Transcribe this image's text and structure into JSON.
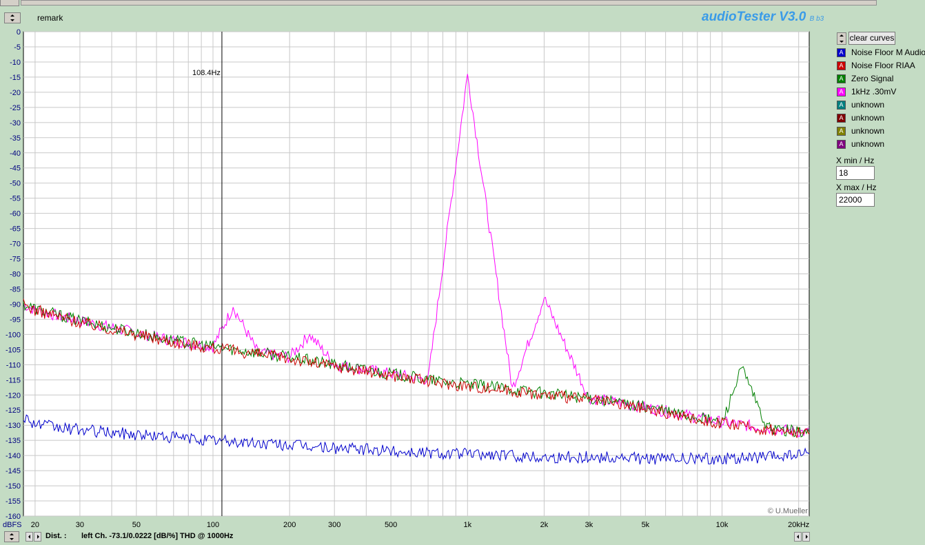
{
  "app": {
    "remark_label": "remark",
    "brand_title": "audioTester V3.0",
    "brand_sub": "B b3",
    "copyright": "© U.Mueller"
  },
  "sidebar": {
    "clear_label": "clear curves",
    "legend": [
      {
        "label": "Noise Floor M Audio",
        "color": "#0000cc"
      },
      {
        "label": "Noise Floor RIAA",
        "color": "#cc0000"
      },
      {
        "label": "Zero Signal",
        "color": "#008000"
      },
      {
        "label": "1kHz .30mV",
        "color": "#ff00ff"
      },
      {
        "label": "unknown",
        "color": "#008080"
      },
      {
        "label": "unknown",
        "color": "#800000"
      },
      {
        "label": "unknown",
        "color": "#808000"
      },
      {
        "label": "unknown",
        "color": "#800080"
      }
    ],
    "legend_glyph": "A",
    "xmin_label": "X min / Hz",
    "xmin_value": "18",
    "xmax_label": "X max / Hz",
    "xmax_value": "22000"
  },
  "status": {
    "dist_label": "Dist. :",
    "text": "left Ch.  -73.1/0.0222 [dB/%] THD @ 1000Hz"
  },
  "chart_data": {
    "type": "line",
    "x_scale": "log",
    "xlim": [
      18,
      22000
    ],
    "ylim": [
      -160,
      0
    ],
    "ylabel": "dBFS",
    "grid": true,
    "y_ticks": [
      0,
      -5,
      -10,
      -15,
      -20,
      -25,
      -30,
      -35,
      -40,
      -45,
      -50,
      -55,
      -60,
      -65,
      -70,
      -75,
      -80,
      -85,
      -90,
      -95,
      -100,
      -105,
      -110,
      -115,
      -120,
      -125,
      -130,
      -135,
      -140,
      -145,
      -150,
      -155,
      -160
    ],
    "x_ticks": [
      {
        "value": 20,
        "label": "20"
      },
      {
        "value": 30,
        "label": "30"
      },
      {
        "value": 50,
        "label": "50"
      },
      {
        "value": 100,
        "label": "100"
      },
      {
        "value": 200,
        "label": "200"
      },
      {
        "value": 300,
        "label": "300"
      },
      {
        "value": 500,
        "label": "500"
      },
      {
        "value": 1000,
        "label": "1k"
      },
      {
        "value": 2000,
        "label": "2k"
      },
      {
        "value": 3000,
        "label": "3k"
      },
      {
        "value": 5000,
        "label": "5k"
      },
      {
        "value": 10000,
        "label": "10k"
      },
      {
        "value": 20000,
        "label": "20kHz"
      }
    ],
    "cursor": {
      "x": 108.4,
      "label": "108.4Hz"
    },
    "series": [
      {
        "name": "Noise Floor M Audio",
        "color": "#0000cc",
        "x": [
          18,
          20,
          25,
          30,
          40,
          50,
          70,
          100,
          150,
          200,
          300,
          500,
          700,
          1000,
          1500,
          2000,
          3000,
          5000,
          7000,
          10000,
          15000,
          22000
        ],
        "y": [
          -127,
          -129.5,
          -131,
          -131.5,
          -132.5,
          -133,
          -134,
          -135,
          -136,
          -136.5,
          -137.5,
          -138.5,
          -139,
          -139.5,
          -140,
          -140.5,
          -140.5,
          -141,
          -141,
          -141,
          -140.5,
          -139.5
        ]
      },
      {
        "name": "Noise Floor RIAA",
        "color": "#cc0000",
        "x": [
          18,
          20,
          30,
          50,
          70,
          100,
          150,
          200,
          300,
          500,
          700,
          1000,
          1500,
          2000,
          3000,
          5000,
          7000,
          10000,
          15000,
          22000
        ],
        "y": [
          -90,
          -92,
          -96,
          -100,
          -102.5,
          -104.5,
          -106.5,
          -108,
          -110.5,
          -113.5,
          -115.5,
          -117,
          -118.5,
          -120,
          -121.5,
          -124.5,
          -127,
          -129.5,
          -131.5,
          -133
        ]
      },
      {
        "name": "Zero Signal",
        "color": "#008000",
        "x": [
          18,
          20,
          30,
          50,
          70,
          100,
          150,
          200,
          300,
          500,
          700,
          1000,
          1500,
          2000,
          3000,
          5000,
          7000,
          10000,
          11960,
          15000,
          22000
        ],
        "y": [
          -90,
          -91.5,
          -95.5,
          -99.5,
          -102,
          -104,
          -106,
          -107.5,
          -110,
          -113,
          -115,
          -116.5,
          -118,
          -119.5,
          -121,
          -124,
          -126.5,
          -129,
          -111,
          -131,
          -132.5
        ]
      },
      {
        "name": "1kHz .30mV",
        "color": "#ff00ff",
        "x": [
          18,
          20,
          30,
          50,
          70,
          100,
          120,
          150,
          200,
          240,
          300,
          500,
          700,
          1000,
          1500,
          2000,
          3000,
          5000,
          7000,
          10000,
          15000,
          22000
        ],
        "y": [
          -90,
          -92,
          -95.5,
          -99.5,
          -102,
          -104,
          -91,
          -106,
          -107.5,
          -100,
          -110,
          -113,
          -115,
          -14,
          -118,
          -88,
          -121,
          -124,
          -126.5,
          -129,
          -131,
          -132.5
        ]
      }
    ]
  }
}
